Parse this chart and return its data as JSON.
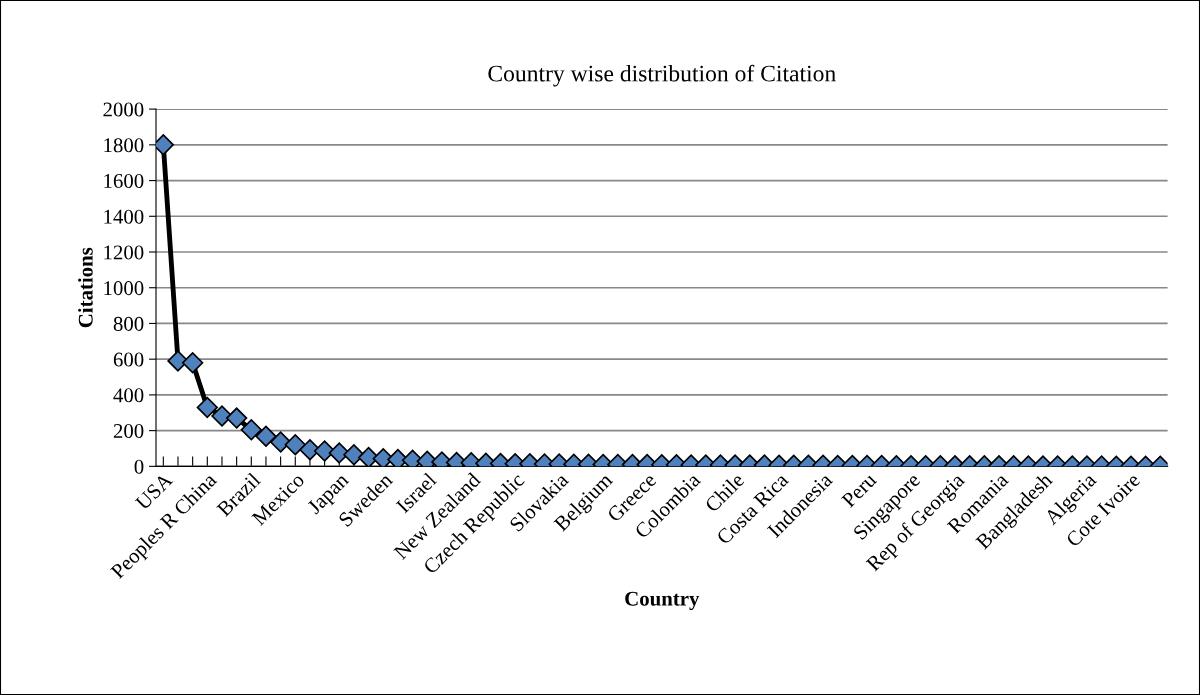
{
  "chart_data": {
    "type": "line",
    "title": "Country wise distribution of Citation",
    "xlabel": "Country",
    "ylabel": "Citations",
    "categories": [
      "USA",
      null,
      null,
      "Peoples R China",
      null,
      null,
      "Brazil",
      null,
      null,
      "Mexico",
      null,
      null,
      "Japan",
      null,
      null,
      "Sweden",
      null,
      null,
      "Israel",
      null,
      null,
      "New Zealand",
      null,
      null,
      "Czech Republic",
      null,
      null,
      "Slovakia",
      null,
      null,
      "Belgium",
      null,
      null,
      "Greece",
      null,
      null,
      "Colombia",
      null,
      null,
      "Chile",
      null,
      null,
      "Costa Rica",
      null,
      null,
      "Indonesia",
      null,
      null,
      "Peru",
      null,
      null,
      "Singapore",
      null,
      null,
      "Rep of Georgia",
      null,
      null,
      "Romania",
      null,
      null,
      "Bangladesh",
      null,
      null,
      "Algeria",
      null,
      null,
      "Cote Ivoire",
      null,
      null
    ],
    "series": [
      {
        "color": "#4f81bd",
        "values": [
          1800,
          590,
          580,
          330,
          282,
          270,
          205,
          168,
          136,
          121,
          93,
          86,
          75,
          65,
          49,
          43,
          38,
          34,
          28,
          25,
          22,
          20,
          17,
          16,
          15,
          14,
          13,
          13,
          12,
          12,
          11,
          11,
          10,
          10,
          9,
          9,
          8,
          8,
          8,
          7,
          7,
          7,
          6,
          6,
          6,
          6,
          5,
          5,
          5,
          5,
          4,
          4,
          4,
          4,
          3,
          3,
          3,
          3,
          3,
          2,
          2,
          2,
          2,
          2,
          2,
          1,
          1,
          1,
          1
        ]
      }
    ],
    "ylim": [
      0,
      2000
    ],
    "yticks": [
      0,
      200,
      400,
      600,
      800,
      1000,
      1200,
      1400,
      1600,
      1800,
      2000
    ],
    "grid": "y",
    "marker": "diamond",
    "line_style": "solid",
    "legend": false
  }
}
